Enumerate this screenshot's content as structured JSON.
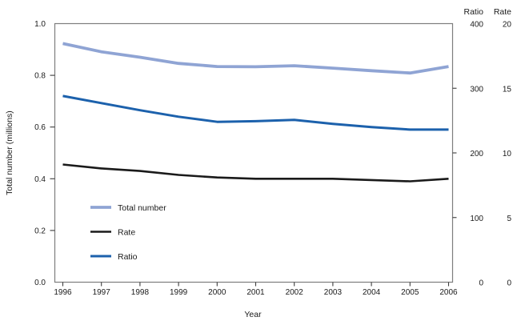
{
  "chart_data": {
    "type": "line",
    "title": "",
    "xlabel": "Year",
    "ylabel": "Total number (millions)",
    "grid": false,
    "x": [
      1996,
      1997,
      1998,
      1999,
      2000,
      2001,
      2002,
      2003,
      2004,
      2005,
      2006
    ],
    "left_axis": {
      "label": "Total number (millions)",
      "range": [
        0,
        1.0
      ],
      "tick_values": [
        0,
        0.2,
        0.4,
        0.6,
        0.8,
        1.0
      ],
      "tick_labels": [
        "0.0",
        "0.2",
        "0.4",
        "0.6",
        "0.8",
        "1.0"
      ],
      "marked_ticks": [
        0.2,
        0.4,
        0.6,
        0.8
      ]
    },
    "right_axes": [
      {
        "label": "Ratio",
        "range": [
          0,
          400
        ],
        "tick_values": [
          0,
          100,
          200,
          300,
          400
        ],
        "tick_labels": [
          "0",
          "100",
          "200",
          "300",
          "400"
        ],
        "marked_ticks": [
          100,
          200,
          300
        ]
      },
      {
        "label": "Rate",
        "range": [
          0,
          20
        ],
        "tick_values": [
          0,
          5,
          10,
          15,
          20
        ],
        "tick_labels": [
          "0",
          "5",
          "10",
          "15",
          "20"
        ],
        "marked_ticks": []
      }
    ],
    "series": [
      {
        "name": "Total number",
        "axis": "left",
        "color": "#8FA4D4",
        "line_width": 3.8,
        "values": [
          0.923,
          0.891,
          0.87,
          0.846,
          0.834,
          0.833,
          0.837,
          0.828,
          0.818,
          0.809,
          0.834
        ]
      },
      {
        "name": "Rate",
        "axis": "rate",
        "color": "#1A1A1A",
        "line_width": 2.6,
        "values": [
          9.1,
          8.8,
          8.6,
          8.3,
          8.1,
          8.0,
          8.0,
          8.0,
          7.9,
          7.8,
          8.0
        ]
      },
      {
        "name": "Ratio",
        "axis": "ratio",
        "color": "#1C61AC",
        "line_width": 3.0,
        "values": [
          288,
          277,
          266,
          256,
          248,
          249,
          251,
          245,
          240,
          236,
          236
        ]
      }
    ],
    "legend": {
      "position": "inside-lower-left",
      "entries": [
        "Total number",
        "Rate",
        "Ratio"
      ]
    }
  },
  "colors": {
    "background": "#ffffff",
    "plot_border": "#7d7d7d",
    "tick": "#3c3c3c",
    "text": "#1a1a1a",
    "series_total_number": "#8FA4D4",
    "series_rate": "#1A1A1A",
    "series_ratio": "#1C61AC"
  }
}
